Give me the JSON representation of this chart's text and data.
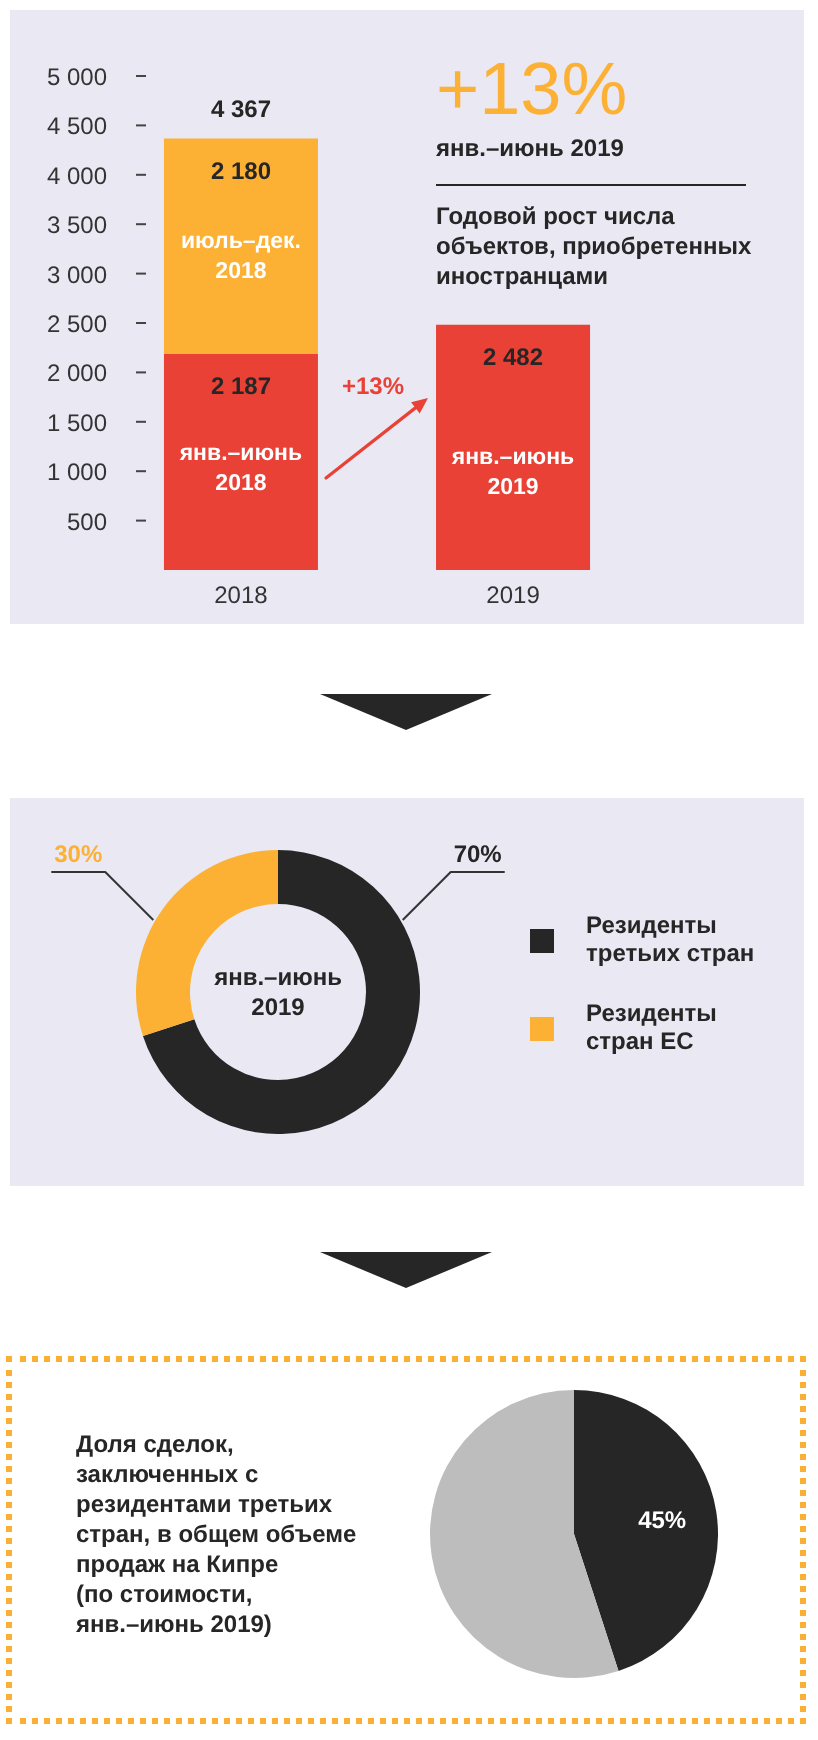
{
  "chart_data": [
    {
      "type": "bar",
      "title": "+13%",
      "subtitle": "янв.–июнь 2019",
      "stacked": true,
      "categories": [
        "2018",
        "2019"
      ],
      "series": [
        {
          "color": "#e94136",
          "values": [
            2187,
            2482
          ],
          "value_labels": [
            "2 187",
            "2 482"
          ]
        },
        {
          "color": "#fcb134",
          "values": [
            2180,
            null
          ],
          "value_labels": [
            "2 180",
            null
          ]
        }
      ],
      "totals": [
        "4 367",
        null
      ],
      "ylim": [
        0,
        5000
      ],
      "yticks": [
        500,
        {
          "value": 1000,
          "label": "1 000"
        },
        {
          "value": 1500,
          "label": "1 500"
        },
        {
          "value": 2000,
          "label": "2 000"
        },
        {
          "value": 2500,
          "label": "2 500"
        },
        {
          "value": 3000,
          "label": "3 000"
        },
        {
          "value": 3500,
          "label": "3 500"
        },
        {
          "value": 4000,
          "label": "4 000"
        },
        {
          "value": 4500,
          "label": "4 500"
        },
        {
          "value": 5000,
          "label": "5 000"
        }
      ],
      "annotations": [
        "Годовой рост числа объектов, приобретенных иностранцами",
        "+13%",
        "янв.–июнь 2018",
        "июль–дек. 2018",
        "янв.–июнь 2019"
      ]
    },
    {
      "type": "donut",
      "categories": [
        "Резиденты третьих стран",
        "Резиденты стран ЕС"
      ],
      "values": [
        70,
        30
      ],
      "colors": [
        "#262626",
        "#fcb134"
      ],
      "value_labels": [
        "70%",
        "30%"
      ],
      "legend": "right",
      "annotations": [
        "янв.–июнь 2019"
      ]
    },
    {
      "type": "pie",
      "title": "Доля сделок, заключенных с резидентами третьих стран, в общем объеме продаж на Кипре (по стоимости, янв.–июнь 2019)",
      "categories": [
        null,
        null
      ],
      "values": [
        45,
        55
      ],
      "colors": [
        "#262626",
        "#bdbdbd"
      ],
      "value_labels": [
        "45%",
        null
      ]
    }
  ]
}
